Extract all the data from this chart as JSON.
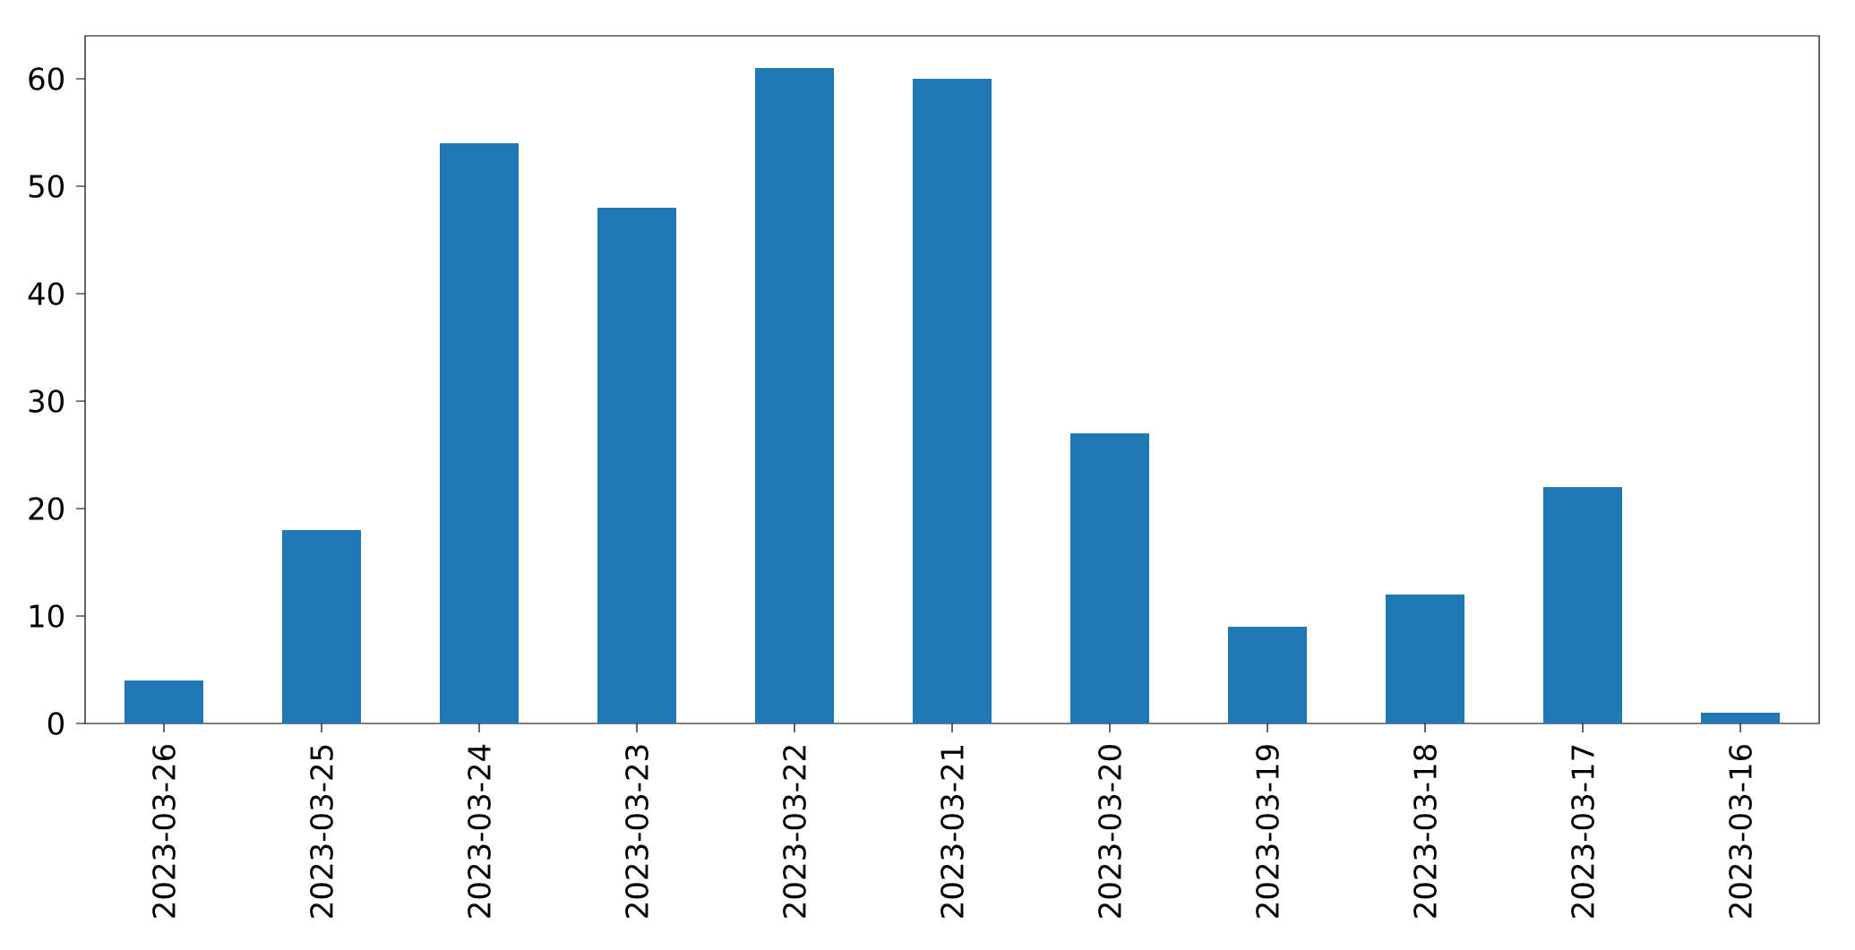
{
  "chart_data": {
    "type": "bar",
    "categories": [
      "2023-03-26",
      "2023-03-25",
      "2023-03-24",
      "2023-03-23",
      "2023-03-22",
      "2023-03-21",
      "2023-03-20",
      "2023-03-19",
      "2023-03-18",
      "2023-03-17",
      "2023-03-16"
    ],
    "values": [
      4,
      18,
      54,
      48,
      61,
      60,
      27,
      9,
      12,
      22,
      1
    ],
    "color": "#1f77b4",
    "ylim": [
      0,
      64
    ],
    "yticks": [
      0,
      10,
      20,
      30,
      40,
      50,
      60
    ],
    "grid": false
  }
}
